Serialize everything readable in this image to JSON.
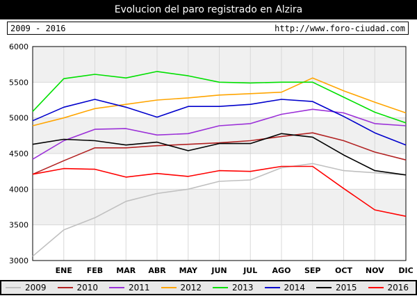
{
  "header": {
    "title": "Evolucion del paro registrado en Alzira",
    "period": "2009 - 2016",
    "url": "http://www.foro-ciudad.com"
  },
  "chart_data": {
    "type": "line",
    "title": "Evolucion del paro registrado en Alzira",
    "categories": [
      "",
      "ENE",
      "FEB",
      "MAR",
      "ABR",
      "MAY",
      "JUN",
      "JUL",
      "AGO",
      "SEP",
      "OCT",
      "NOV",
      "DIC"
    ],
    "ylim": [
      3000,
      6000
    ],
    "yticks": [
      3000,
      3500,
      4000,
      4500,
      5000,
      5500,
      6000
    ],
    "grid": true,
    "legend_position": "bottom",
    "series": [
      {
        "name": "2009",
        "color": "#c0c0c0",
        "values": [
          3060,
          3430,
          3600,
          3830,
          3940,
          4000,
          4110,
          4130,
          4300,
          4360,
          4260,
          4230,
          4200
        ]
      },
      {
        "name": "2010",
        "color": "#b22222",
        "values": [
          4210,
          4400,
          4580,
          4580,
          4610,
          4630,
          4650,
          4680,
          4740,
          4790,
          4680,
          4520,
          4410
        ]
      },
      {
        "name": "2011",
        "color": "#9b30d8",
        "values": [
          4420,
          4680,
          4840,
          4850,
          4760,
          4780,
          4890,
          4920,
          5050,
          5120,
          5070,
          4920,
          4890
        ]
      },
      {
        "name": "2012",
        "color": "#ffa500",
        "values": [
          4890,
          5000,
          5130,
          5190,
          5250,
          5280,
          5320,
          5340,
          5360,
          5560,
          5380,
          5220,
          5070
        ]
      },
      {
        "name": "2013",
        "color": "#00e000",
        "values": [
          5090,
          5550,
          5610,
          5560,
          5650,
          5590,
          5500,
          5490,
          5500,
          5500,
          5290,
          5080,
          4930
        ]
      },
      {
        "name": "2014",
        "color": "#0000cc",
        "values": [
          4960,
          5150,
          5260,
          5150,
          5010,
          5160,
          5160,
          5190,
          5260,
          5230,
          5020,
          4790,
          4620
        ]
      },
      {
        "name": "2015",
        "color": "#000000",
        "values": [
          4630,
          4700,
          4680,
          4620,
          4660,
          4540,
          4640,
          4640,
          4780,
          4730,
          4480,
          4260,
          4200
        ]
      },
      {
        "name": "2016",
        "color": "#ff0000",
        "values": [
          4210,
          4290,
          4280,
          4170,
          4220,
          4180,
          4260,
          4250,
          4320,
          4320,
          4010,
          3710,
          3620
        ]
      }
    ]
  }
}
